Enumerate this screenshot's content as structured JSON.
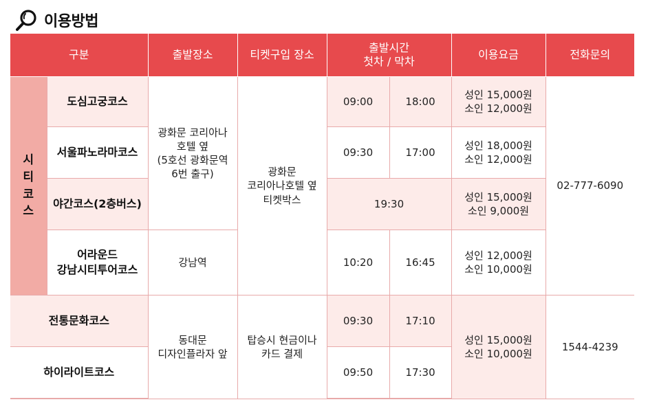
{
  "title": "이용방법",
  "icon": "magnifier-icon",
  "accent_color": "#e74a4d",
  "headers": {
    "category": "구분",
    "departure_place": "출발장소",
    "ticket_place": "티켓구입 장소",
    "departure_time": "출발시간\n첫차 / 막차",
    "fare": "이용요금",
    "phone": "전화문의"
  },
  "city_course": {
    "group_label": [
      "시",
      "티",
      "코",
      "스"
    ],
    "courses": [
      {
        "name": "도심고궁코스",
        "first": "09:00",
        "last": "18:00",
        "fare": "성인 15,000원\n소인 12,000원"
      },
      {
        "name": "서울파노라마코스",
        "first": "09:30",
        "last": "17:00",
        "fare": "성인 18,000원\n소인 12,000원"
      },
      {
        "name": "야간코스(2층버스)",
        "time": "19:30",
        "fare": "성인 15,000원\n소인 9,000원"
      },
      {
        "name": "어라운드\n강남시티투어코스",
        "first": "10:20",
        "last": "16:45",
        "fare": "성인 12,000원\n소인 10,000원"
      }
    ],
    "departure_main": "광화문 코리아나\n호텔 옆\n(5호선 광화문역\n6번 출구)",
    "departure_gangnam": "강남역",
    "ticket_place": "광화문\n코리아나호텔 옆\n티켓박스",
    "phone": "02-777-6090"
  },
  "other_courses": {
    "courses": [
      {
        "name": "전통문화코스",
        "first": "09:30",
        "last": "17:10"
      },
      {
        "name": "하이라이트코스",
        "first": "09:50",
        "last": "17:30"
      }
    ],
    "departure": "동대문\n디자인플라자 앞",
    "ticket_place": "탑승시 현금이나\n카드 결제",
    "fare": "성인 15,000원\n소인 10,000원",
    "phone": "1544-4239"
  }
}
